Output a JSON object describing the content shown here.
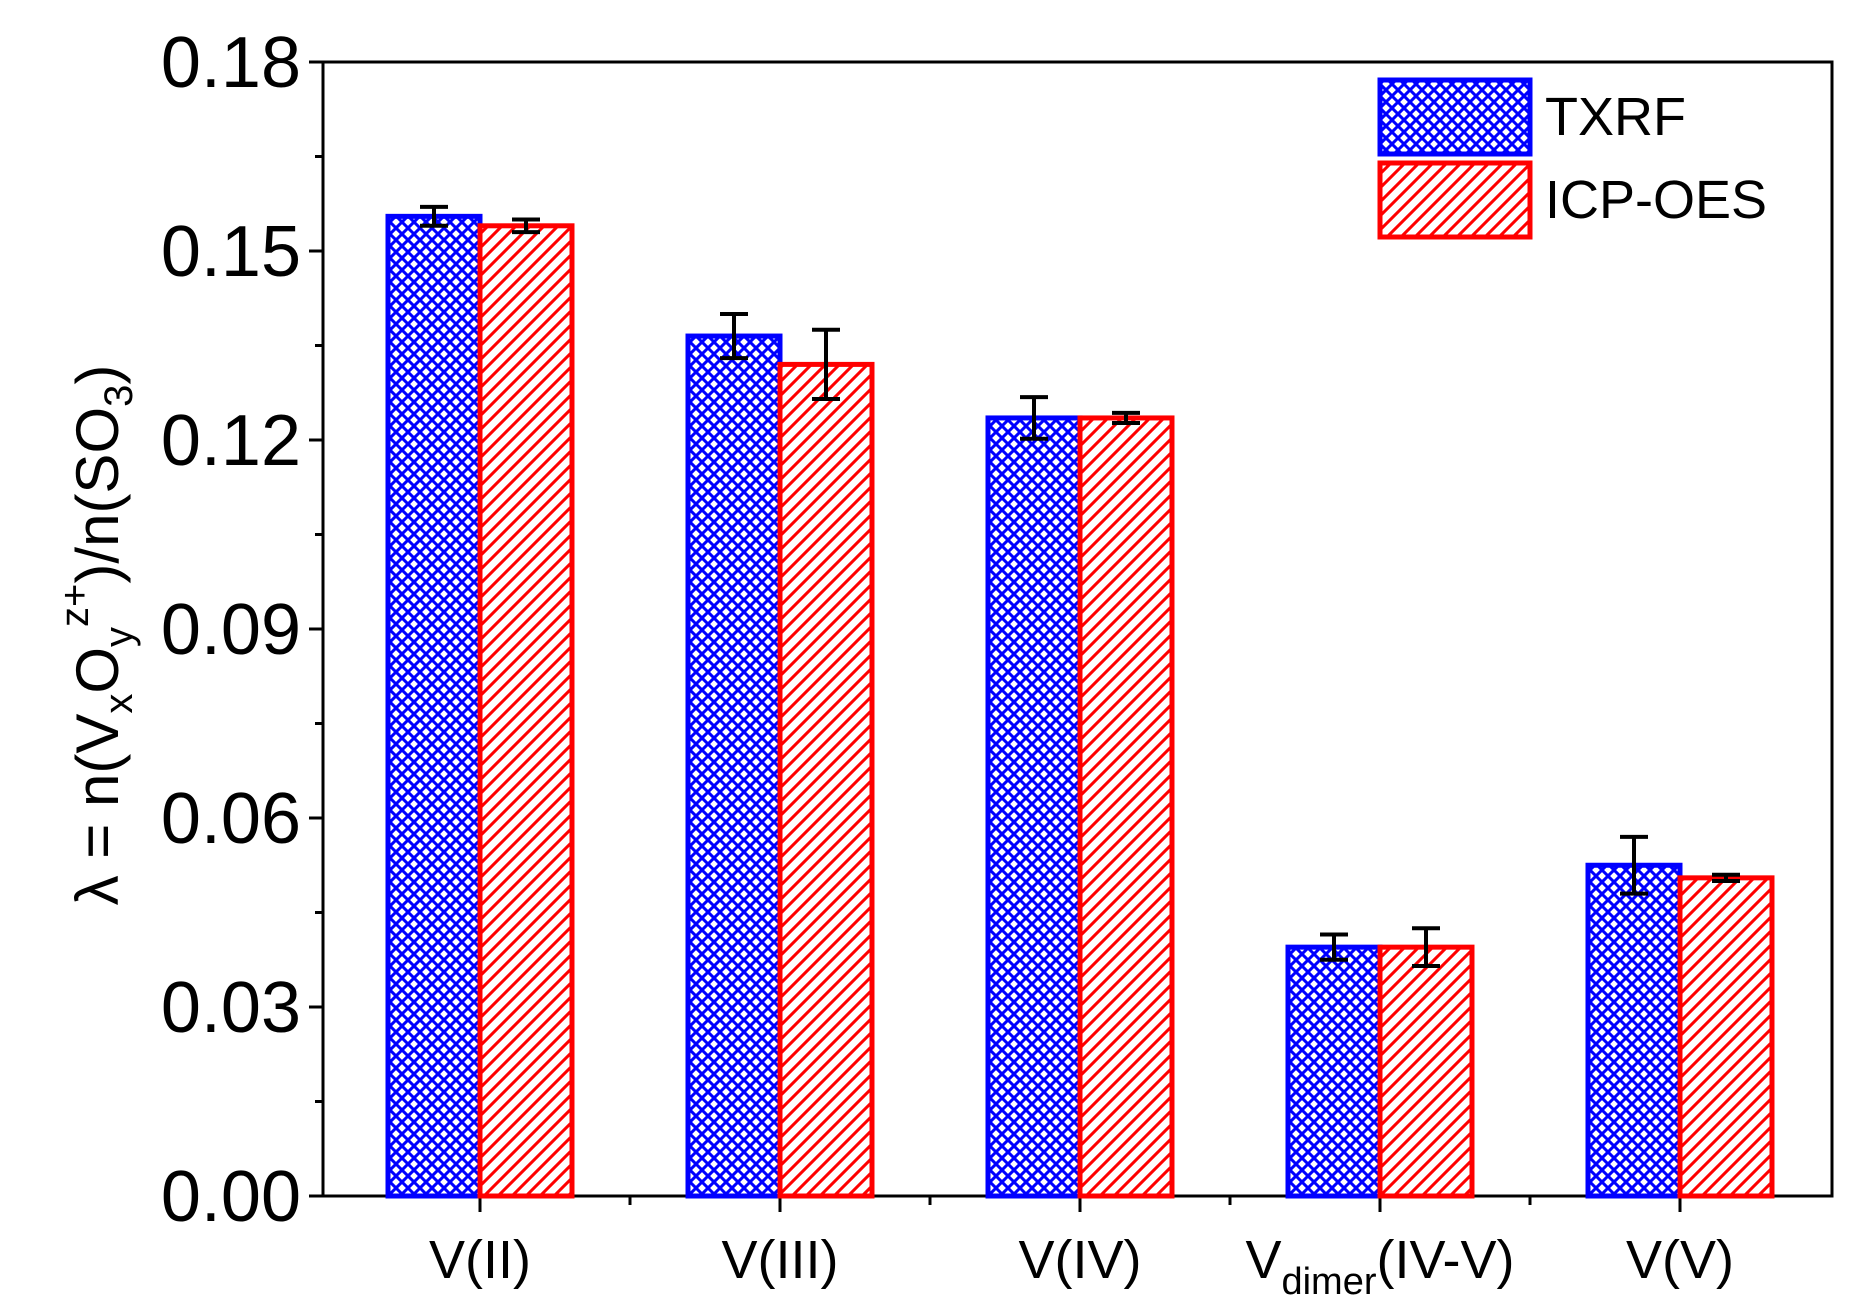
{
  "chart_data": {
    "type": "bar",
    "title": "",
    "xlabel": "",
    "ylabel": {
      "lambda": "λ",
      "eq": " = n(V",
      "sub_x": "x",
      "o": "O",
      "sub_y": "y",
      "sup_z": "z+",
      "close": ")/n(SO",
      "sub_3": "3",
      "end": ")"
    },
    "ylim": [
      0,
      0.18
    ],
    "yticks": [
      "0.00",
      "0.03",
      "0.06",
      "0.09",
      "0.12",
      "0.15",
      "0.18"
    ],
    "ytick_values": [
      0,
      0.03,
      0.06,
      0.09,
      0.12,
      0.15,
      0.18
    ],
    "grid": false,
    "legend_position": "top-right",
    "categories": [
      {
        "main": "V(II)",
        "sub": "",
        "after": ""
      },
      {
        "main": "V(III)",
        "sub": "",
        "after": ""
      },
      {
        "main": "V(IV)",
        "sub": "",
        "after": ""
      },
      {
        "main": "V",
        "sub": "dimer",
        "after": "(IV-V)"
      },
      {
        "main": "V(V)",
        "sub": "",
        "after": ""
      }
    ],
    "series": [
      {
        "name": "TXRF",
        "color": "#0000ff",
        "pattern": "crosshatch",
        "values": [
          0.1555,
          0.1365,
          0.1235,
          0.0395,
          0.0525
        ],
        "errors": [
          0.0015,
          0.0035,
          0.0033,
          0.002,
          0.0045
        ]
      },
      {
        "name": "ICP-OES",
        "color": "#ff0000",
        "pattern": "diagonal",
        "values": [
          0.154,
          0.132,
          0.1235,
          0.0395,
          0.0505
        ],
        "errors": [
          0.001,
          0.0055,
          0.0008,
          0.003,
          0.0005
        ]
      }
    ]
  }
}
